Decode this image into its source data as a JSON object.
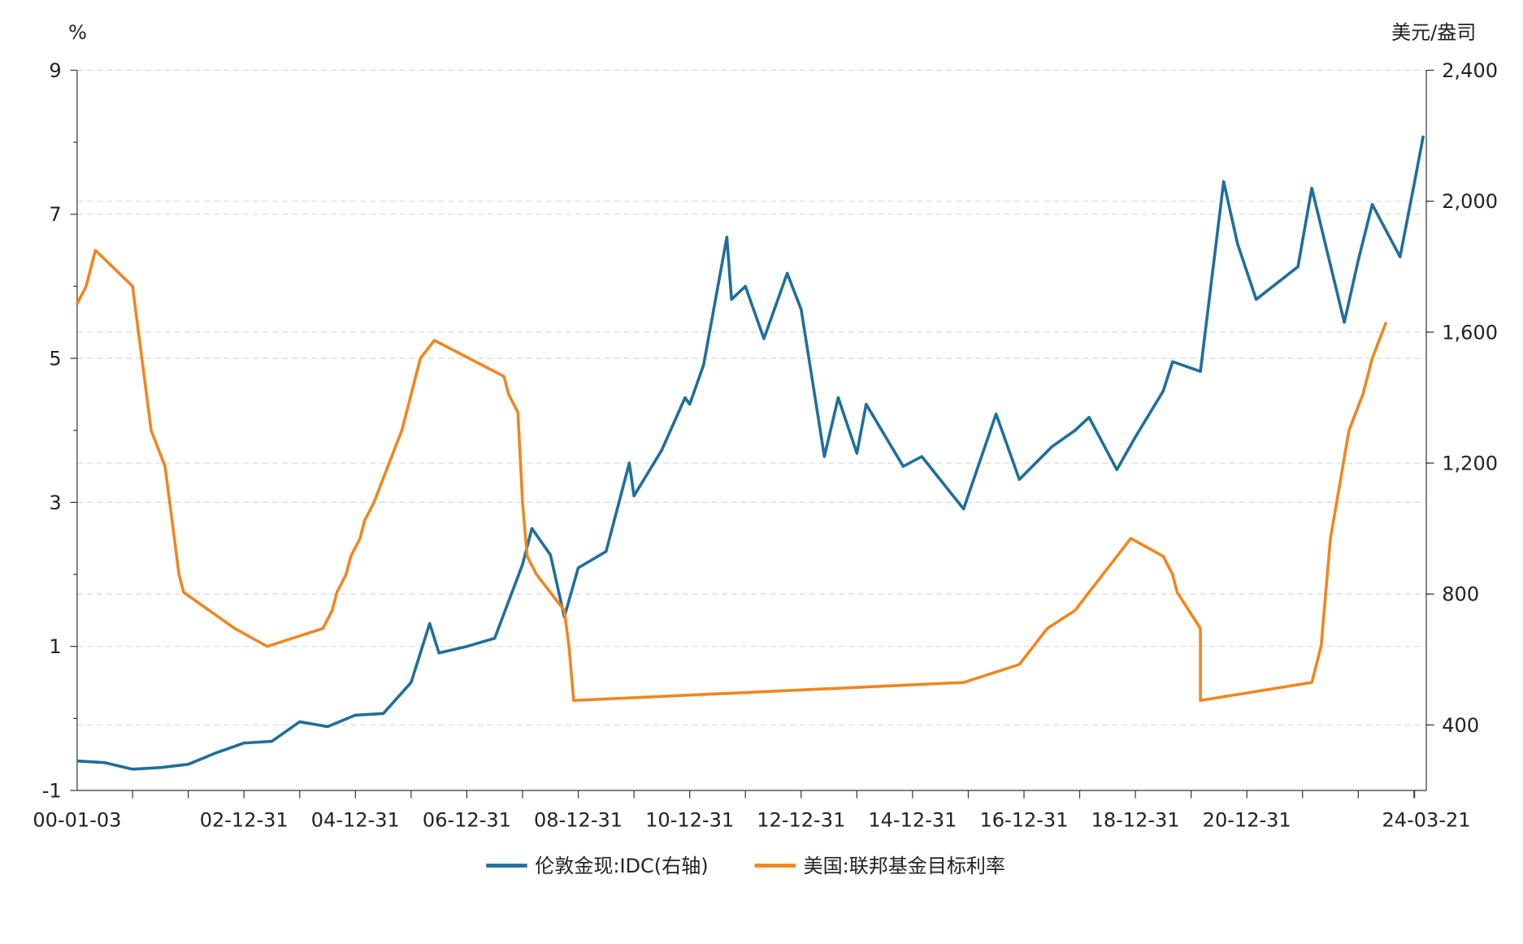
{
  "chart_data": {
    "type": "line",
    "left_axis": {
      "unit_label": "%",
      "ylim": [
        -1,
        9
      ],
      "ticks": [
        "9",
        "7",
        "5",
        "3",
        "1",
        "-1"
      ]
    },
    "right_axis": {
      "unit_label": "美元/盎司",
      "ylim": [
        200,
        2400
      ],
      "ticks": [
        "2,400",
        "2,000",
        "1,600",
        "1,200",
        "800",
        "400"
      ]
    },
    "x_axis": {
      "range": [
        "2000-01-03",
        "2024-03-21"
      ],
      "tick_labels": [
        "00-01-03",
        "02-12-31",
        "04-12-31",
        "06-12-31",
        "08-12-31",
        "10-12-31",
        "12-12-31",
        "14-12-31",
        "16-12-31",
        "18-12-31",
        "20-12-31",
        "24-03-21"
      ]
    },
    "grid": true,
    "legend_position": "bottom",
    "series": [
      {
        "name": "伦敦金现:IDC(右轴)",
        "axis": "right",
        "color": "#1f6f9a",
        "points": [
          [
            "2000-01",
            290
          ],
          [
            "2000-07",
            285
          ],
          [
            "2001-01",
            265
          ],
          [
            "2001-07",
            270
          ],
          [
            "2002-01",
            280
          ],
          [
            "2002-07",
            315
          ],
          [
            "2003-01",
            345
          ],
          [
            "2003-07",
            350
          ],
          [
            "2004-01",
            410
          ],
          [
            "2004-07",
            395
          ],
          [
            "2005-01",
            430
          ],
          [
            "2005-07",
            435
          ],
          [
            "2006-01",
            530
          ],
          [
            "2006-05",
            710
          ],
          [
            "2006-07",
            620
          ],
          [
            "2007-01",
            640
          ],
          [
            "2007-07",
            665
          ],
          [
            "2008-01",
            890
          ],
          [
            "2008-03",
            1000
          ],
          [
            "2008-07",
            920
          ],
          [
            "2008-10",
            730
          ],
          [
            "2009-01",
            880
          ],
          [
            "2009-07",
            930
          ],
          [
            "2009-12",
            1200
          ],
          [
            "2010-01",
            1100
          ],
          [
            "2010-07",
            1240
          ],
          [
            "2010-12",
            1400
          ],
          [
            "2011-01",
            1380
          ],
          [
            "2011-04",
            1500
          ],
          [
            "2011-09",
            1890
          ],
          [
            "2011-10",
            1700
          ],
          [
            "2012-01",
            1740
          ],
          [
            "2012-05",
            1580
          ],
          [
            "2012-10",
            1780
          ],
          [
            "2013-01",
            1670
          ],
          [
            "2013-04",
            1400
          ],
          [
            "2013-06",
            1220
          ],
          [
            "2013-09",
            1400
          ],
          [
            "2014-01",
            1230
          ],
          [
            "2014-03",
            1380
          ],
          [
            "2014-11",
            1190
          ],
          [
            "2015-03",
            1220
          ],
          [
            "2015-12",
            1060
          ],
          [
            "2016-07",
            1350
          ],
          [
            "2016-12",
            1150
          ],
          [
            "2017-07",
            1250
          ],
          [
            "2017-12",
            1300
          ],
          [
            "2018-03",
            1340
          ],
          [
            "2018-09",
            1180
          ],
          [
            "2019-01",
            1280
          ],
          [
            "2019-07",
            1420
          ],
          [
            "2019-09",
            1510
          ],
          [
            "2020-03",
            1480
          ],
          [
            "2020-08",
            2060
          ],
          [
            "2020-11",
            1870
          ],
          [
            "2021-03",
            1700
          ],
          [
            "2021-12",
            1800
          ],
          [
            "2022-03",
            2040
          ],
          [
            "2022-10",
            1630
          ],
          [
            "2023-01",
            1820
          ],
          [
            "2023-04",
            1990
          ],
          [
            "2023-10",
            1830
          ],
          [
            "2024-01",
            2050
          ],
          [
            "2024-03",
            2200
          ]
        ]
      },
      {
        "name": "美国:联邦基金目标利率",
        "axis": "left",
        "color": "#f0861e",
        "points": [
          [
            "2000-01",
            5.75
          ],
          [
            "2000-03",
            6.0
          ],
          [
            "2000-05",
            6.5
          ],
          [
            "2001-01",
            6.0
          ],
          [
            "2001-02",
            5.5
          ],
          [
            "2001-03",
            5.0
          ],
          [
            "2001-05",
            4.0
          ],
          [
            "2001-08",
            3.5
          ],
          [
            "2001-09",
            3.0
          ],
          [
            "2001-10",
            2.5
          ],
          [
            "2001-11",
            2.0
          ],
          [
            "2001-12",
            1.75
          ],
          [
            "2002-11",
            1.25
          ],
          [
            "2003-06",
            1.0
          ],
          [
            "2004-06",
            1.25
          ],
          [
            "2004-08",
            1.5
          ],
          [
            "2004-09",
            1.75
          ],
          [
            "2004-11",
            2.0
          ],
          [
            "2004-12",
            2.25
          ],
          [
            "2005-02",
            2.5
          ],
          [
            "2005-03",
            2.75
          ],
          [
            "2005-05",
            3.0
          ],
          [
            "2005-08",
            3.5
          ],
          [
            "2005-11",
            4.0
          ],
          [
            "2006-01",
            4.5
          ],
          [
            "2006-03",
            5.0
          ],
          [
            "2006-06",
            5.25
          ],
          [
            "2007-09",
            4.75
          ],
          [
            "2007-10",
            4.5
          ],
          [
            "2007-12",
            4.25
          ],
          [
            "2008-01",
            3.0
          ],
          [
            "2008-02",
            2.25
          ],
          [
            "2008-04",
            2.0
          ],
          [
            "2008-10",
            1.5
          ],
          [
            "2008-11",
            1.0
          ],
          [
            "2008-12",
            0.25
          ],
          [
            "2015-12",
            0.5
          ],
          [
            "2016-12",
            0.75
          ],
          [
            "2017-03",
            1.0
          ],
          [
            "2017-06",
            1.25
          ],
          [
            "2017-12",
            1.5
          ],
          [
            "2018-03",
            1.75
          ],
          [
            "2018-06",
            2.0
          ],
          [
            "2018-09",
            2.25
          ],
          [
            "2018-12",
            2.5
          ],
          [
            "2019-07",
            2.25
          ],
          [
            "2019-09",
            2.0
          ],
          [
            "2019-10",
            1.75
          ],
          [
            "2020-03",
            1.25
          ],
          [
            "2020-03",
            0.25
          ],
          [
            "2022-03",
            0.5
          ],
          [
            "2022-05",
            1.0
          ],
          [
            "2022-06",
            1.75
          ],
          [
            "2022-07",
            2.5
          ],
          [
            "2022-09",
            3.25
          ],
          [
            "2022-11",
            4.0
          ],
          [
            "2023-02",
            4.5
          ],
          [
            "2023-04",
            5.0
          ],
          [
            "2023-07",
            5.5
          ]
        ]
      }
    ]
  }
}
